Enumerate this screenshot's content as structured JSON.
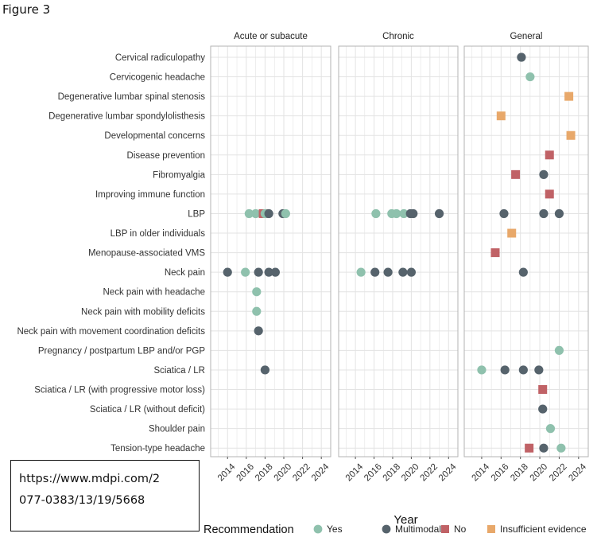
{
  "figure_title": "Figure 3",
  "source_url": {
    "line1": "https://www.mdpi.com/2",
    "line2": "077-0383/13/19/5668"
  },
  "colors": {
    "Yes": "#8fc1ad",
    "Multimodal": "#56636c",
    "No": "#c06266",
    "Insufficient evidence": "#e8a86a",
    "grid": "#e3e3e3",
    "panel_border": "#b3b3b3"
  },
  "chart_data": {
    "type": "scatter",
    "xlabel": "Year",
    "ylabel": "",
    "xlim": [
      2012.2,
      2025.0
    ],
    "x_ticks": [
      2014,
      2016,
      2018,
      2020,
      2022,
      2024
    ],
    "grid": true,
    "legend_title": "Recommendation",
    "legend_position": "bottom",
    "legend": [
      {
        "name": "Yes",
        "shape": "circle"
      },
      {
        "name": "Multimodal",
        "shape": "circle"
      },
      {
        "name": "No",
        "shape": "square"
      },
      {
        "name": "Insufficient evidence",
        "shape": "square"
      }
    ],
    "panels": [
      "Acute or subacute",
      "Chronic",
      "General"
    ],
    "categories": [
      "Cervical radiculopathy",
      "Cervicogenic headache",
      "Degenerative lumbar spinal stenosis",
      "Degenerative lumbar spondylolisthesis",
      "Developmental concerns",
      "Disease prevention",
      "Fibromyalgia",
      "Improving immune function",
      "LBP",
      "LBP in older individuals",
      "Menopause-associated VMS",
      "Neck pain",
      "Neck pain with headache",
      "Neck pain with mobility deficits",
      "Neck pain with movement coordination deficits",
      "Pregnancy / postpartum LBP and/or PGP",
      "Sciatica / LR",
      "Sciatica / LR (with progressive motor loss)",
      "Sciatica / LR (without deficit)",
      "Shoulder pain",
      "Tension-type headache"
    ],
    "points": [
      {
        "panel": "Acute or subacute",
        "category": "LBP",
        "x": 2016.3,
        "rec": "Yes"
      },
      {
        "panel": "Acute or subacute",
        "category": "LBP",
        "x": 2017.0,
        "rec": "Yes"
      },
      {
        "panel": "Acute or subacute",
        "category": "LBP",
        "x": 2017.8,
        "rec": "No"
      },
      {
        "panel": "Acute or subacute",
        "category": "LBP",
        "x": 2018.0,
        "rec": "Yes"
      },
      {
        "panel": "Acute or subacute",
        "category": "LBP",
        "x": 2018.4,
        "rec": "Multimodal"
      },
      {
        "panel": "Acute or subacute",
        "category": "LBP",
        "x": 2019.9,
        "rec": "Multimodal"
      },
      {
        "panel": "Acute or subacute",
        "category": "LBP",
        "x": 2020.2,
        "rec": "Yes"
      },
      {
        "panel": "Acute or subacute",
        "category": "Neck pain",
        "x": 2014.0,
        "rec": "Multimodal"
      },
      {
        "panel": "Acute or subacute",
        "category": "Neck pain",
        "x": 2015.9,
        "rec": "Yes"
      },
      {
        "panel": "Acute or subacute",
        "category": "Neck pain",
        "x": 2017.3,
        "rec": "Multimodal"
      },
      {
        "panel": "Acute or subacute",
        "category": "Neck pain",
        "x": 2018.4,
        "rec": "Multimodal"
      },
      {
        "panel": "Acute or subacute",
        "category": "Neck pain",
        "x": 2019.1,
        "rec": "Multimodal"
      },
      {
        "panel": "Acute or subacute",
        "category": "Neck pain with headache",
        "x": 2017.1,
        "rec": "Yes"
      },
      {
        "panel": "Acute or subacute",
        "category": "Neck pain with mobility deficits",
        "x": 2017.1,
        "rec": "Yes"
      },
      {
        "panel": "Acute or subacute",
        "category": "Neck pain with movement coordination deficits",
        "x": 2017.3,
        "rec": "Multimodal"
      },
      {
        "panel": "Acute or subacute",
        "category": "Sciatica / LR",
        "x": 2018.0,
        "rec": "Multimodal"
      },
      {
        "panel": "Chronic",
        "category": "LBP",
        "x": 2016.2,
        "rec": "Yes"
      },
      {
        "panel": "Chronic",
        "category": "LBP",
        "x": 2017.9,
        "rec": "Yes"
      },
      {
        "panel": "Chronic",
        "category": "LBP",
        "x": 2018.4,
        "rec": "Yes"
      },
      {
        "panel": "Chronic",
        "category": "LBP",
        "x": 2019.2,
        "rec": "Yes"
      },
      {
        "panel": "Chronic",
        "category": "LBP",
        "x": 2019.9,
        "rec": "Multimodal"
      },
      {
        "panel": "Chronic",
        "category": "LBP",
        "x": 2020.2,
        "rec": "Multimodal"
      },
      {
        "panel": "Chronic",
        "category": "LBP",
        "x": 2023.0,
        "rec": "Multimodal"
      },
      {
        "panel": "Chronic",
        "category": "Neck pain",
        "x": 2014.6,
        "rec": "Yes"
      },
      {
        "panel": "Chronic",
        "category": "Neck pain",
        "x": 2016.1,
        "rec": "Multimodal"
      },
      {
        "panel": "Chronic",
        "category": "Neck pain",
        "x": 2017.5,
        "rec": "Multimodal"
      },
      {
        "panel": "Chronic",
        "category": "Neck pain",
        "x": 2019.1,
        "rec": "Multimodal"
      },
      {
        "panel": "Chronic",
        "category": "Neck pain",
        "x": 2020.0,
        "rec": "Multimodal"
      },
      {
        "panel": "General",
        "category": "Cervical radiculopathy",
        "x": 2018.1,
        "rec": "Multimodal"
      },
      {
        "panel": "General",
        "category": "Cervicogenic headache",
        "x": 2019.0,
        "rec": "Yes"
      },
      {
        "panel": "General",
        "category": "Degenerative lumbar spinal stenosis",
        "x": 2023.0,
        "rec": "Insufficient evidence"
      },
      {
        "panel": "General",
        "category": "Degenerative lumbar spondylolisthesis",
        "x": 2016.0,
        "rec": "Insufficient evidence"
      },
      {
        "panel": "General",
        "category": "Developmental concerns",
        "x": 2023.2,
        "rec": "Insufficient evidence"
      },
      {
        "panel": "General",
        "category": "Disease prevention",
        "x": 2021.0,
        "rec": "No"
      },
      {
        "panel": "General",
        "category": "Fibromyalgia",
        "x": 2017.5,
        "rec": "No"
      },
      {
        "panel": "General",
        "category": "Fibromyalgia",
        "x": 2020.4,
        "rec": "Multimodal"
      },
      {
        "panel": "General",
        "category": "Improving immune function",
        "x": 2021.0,
        "rec": "No"
      },
      {
        "panel": "General",
        "category": "LBP",
        "x": 2016.3,
        "rec": "Multimodal"
      },
      {
        "panel": "General",
        "category": "LBP",
        "x": 2020.4,
        "rec": "Multimodal"
      },
      {
        "panel": "General",
        "category": "LBP",
        "x": 2022.0,
        "rec": "Multimodal"
      },
      {
        "panel": "General",
        "category": "LBP in older individuals",
        "x": 2017.1,
        "rec": "Insufficient evidence"
      },
      {
        "panel": "General",
        "category": "Menopause-associated VMS",
        "x": 2015.4,
        "rec": "No"
      },
      {
        "panel": "General",
        "category": "Neck pain",
        "x": 2018.3,
        "rec": "Multimodal"
      },
      {
        "panel": "General",
        "category": "Pregnancy / postpartum LBP and/or PGP",
        "x": 2022.0,
        "rec": "Yes"
      },
      {
        "panel": "General",
        "category": "Sciatica / LR",
        "x": 2014.0,
        "rec": "Yes"
      },
      {
        "panel": "General",
        "category": "Sciatica / LR",
        "x": 2016.4,
        "rec": "Multimodal"
      },
      {
        "panel": "General",
        "category": "Sciatica / LR",
        "x": 2018.3,
        "rec": "Multimodal"
      },
      {
        "panel": "General",
        "category": "Sciatica / LR",
        "x": 2019.9,
        "rec": "Multimodal"
      },
      {
        "panel": "General",
        "category": "Sciatica / LR (with progressive motor loss)",
        "x": 2020.3,
        "rec": "No"
      },
      {
        "panel": "General",
        "category": "Sciatica / LR (without deficit)",
        "x": 2020.3,
        "rec": "Multimodal"
      },
      {
        "panel": "General",
        "category": "Shoulder pain",
        "x": 2021.1,
        "rec": "Yes"
      },
      {
        "panel": "General",
        "category": "Tension-type headache",
        "x": 2018.9,
        "rec": "No"
      },
      {
        "panel": "General",
        "category": "Tension-type headache",
        "x": 2020.4,
        "rec": "Multimodal"
      },
      {
        "panel": "General",
        "category": "Tension-type headache",
        "x": 2022.2,
        "rec": "Yes"
      }
    ]
  }
}
